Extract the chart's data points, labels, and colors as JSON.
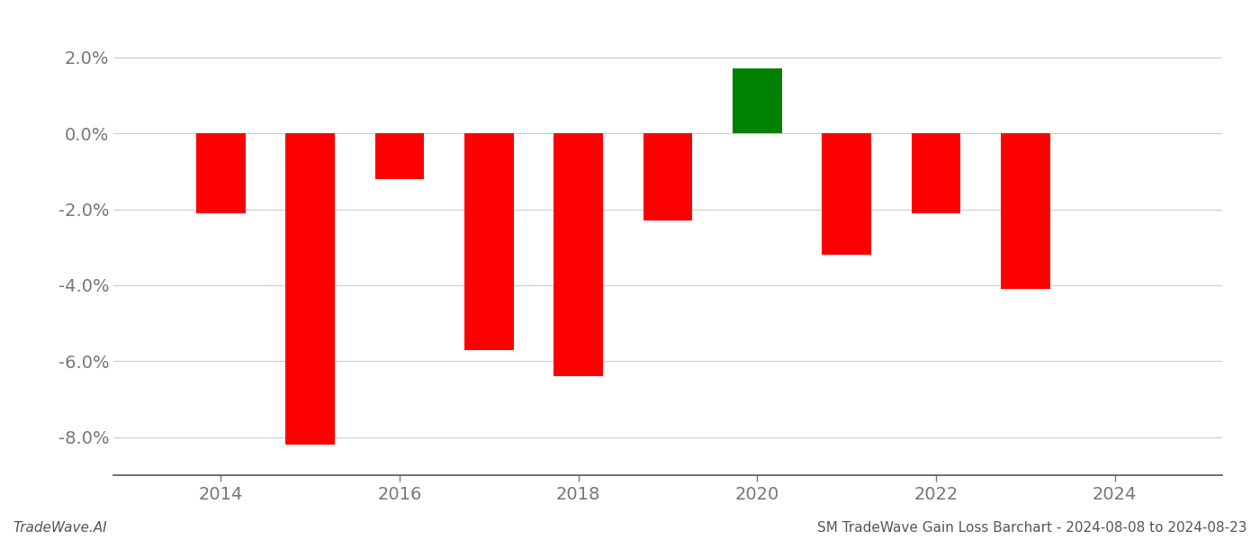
{
  "years": [
    2014,
    2015,
    2016,
    2017,
    2018,
    2019,
    2020,
    2021,
    2022,
    2023
  ],
  "values": [
    -0.021,
    -0.082,
    -0.012,
    -0.057,
    -0.064,
    -0.023,
    0.017,
    -0.032,
    -0.021,
    -0.041
  ],
  "colors": [
    "#ff0000",
    "#ff0000",
    "#ff0000",
    "#ff0000",
    "#ff0000",
    "#ff0000",
    "#008000",
    "#ff0000",
    "#ff0000",
    "#ff0000"
  ],
  "ylim": [
    -0.09,
    0.028
  ],
  "yticks": [
    -0.08,
    -0.06,
    -0.04,
    -0.02,
    0.0,
    0.02
  ],
  "background_color": "#ffffff",
  "bar_width": 0.55,
  "grid_color": "#cccccc",
  "axis_color": "#555555",
  "tick_color": "#777777",
  "tick_fontsize": 14,
  "footer_left": "TradeWave.AI",
  "footer_right": "SM TradeWave Gain Loss Barchart - 2024-08-08 to 2024-08-23",
  "footer_fontsize": 11,
  "xtick_positions": [
    2014,
    2016,
    2018,
    2020,
    2022,
    2024
  ],
  "xlim": [
    2012.8,
    2025.2
  ]
}
